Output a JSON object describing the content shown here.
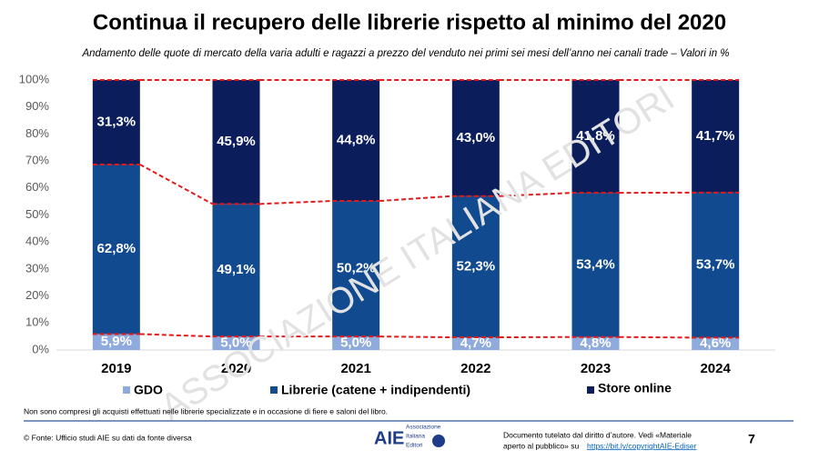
{
  "chart_data": {
    "type": "stacked-bar",
    "title": "Continua il recupero delle librerie rispetto al minimo del 2020",
    "subtitle": "Andamento delle quote di mercato della varia adulti e ragazzi a prezzo del venduto nei primi sei mesi dell’anno nei canali trade – Valori in %",
    "categories": [
      "2019",
      "2020",
      "2021",
      "2022",
      "2023",
      "2024"
    ],
    "series": [
      {
        "name": "GDO",
        "color": "#8faadc",
        "values": [
          5.9,
          5.0,
          5.0,
          4.7,
          4.8,
          4.6
        ],
        "value_labels": [
          "5,9%",
          "5,0%",
          "5,0%",
          "4,7%",
          "4,8%",
          "4,6%"
        ]
      },
      {
        "name": "Librerie (catene + indipendenti)",
        "color": "#114a8e",
        "values": [
          62.8,
          49.1,
          50.2,
          52.3,
          53.4,
          53.7
        ],
        "value_labels": [
          "62,8%",
          "49,1%",
          "50,2%",
          "52,3%",
          "53,4%",
          "53,7%"
        ]
      },
      {
        "name": "Store online",
        "color": "#0b1d5b",
        "values": [
          31.3,
          45.9,
          44.8,
          43.0,
          41.8,
          41.7
        ],
        "value_labels": [
          "31,3%",
          "45,9%",
          "44,8%",
          "43,0%",
          "41,8%",
          "41,7%"
        ]
      }
    ],
    "ylim": [
      0,
      100
    ],
    "yticks": [
      {
        "value": 0,
        "label": "0%"
      },
      {
        "value": 10,
        "label": "10%"
      },
      {
        "value": 20,
        "label": "20%"
      },
      {
        "value": 30,
        "label": "30%"
      },
      {
        "value": 40,
        "label": "40%"
      },
      {
        "value": 50,
        "label": "50%"
      },
      {
        "value": 60,
        "label": "60%"
      },
      {
        "value": 70,
        "label": "70%"
      },
      {
        "value": 80,
        "label": "80%"
      },
      {
        "value": 90,
        "label": "90%"
      },
      {
        "value": 100,
        "label": "100%"
      }
    ],
    "connector_color": "#e31a1c"
  },
  "page": {
    "watermark": "ASSOCIAZIONE ITALIANA EDITORI",
    "note": "Non sono compresi gli acquisti effettuati nelle librerie specializzate e in occasione di fiere e saloni del libro.",
    "source": "© Fonte: Ufficio studi AIE su dati da fonte diversa",
    "logo": "AIE",
    "logo_text": [
      "Associazione",
      "Italiana",
      "Editori"
    ],
    "copyright": "Documento tutelato dal diritto d’autore. Vedi «Materiale",
    "copyright2": "aperto al pubblico» su",
    "link": "https://bit.ly/copyrightAIE-Ediser",
    "page_number": "7"
  }
}
